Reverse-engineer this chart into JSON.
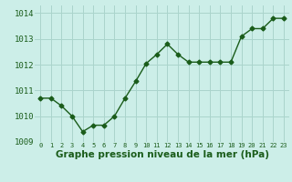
{
  "x": [
    0,
    1,
    2,
    3,
    4,
    5,
    6,
    7,
    8,
    9,
    10,
    11,
    12,
    13,
    14,
    15,
    16,
    17,
    18,
    19,
    20,
    21,
    22,
    23
  ],
  "y": [
    1010.7,
    1010.7,
    1010.4,
    1010.0,
    1009.4,
    1009.65,
    1009.65,
    1010.0,
    1010.7,
    1011.35,
    1012.05,
    1012.4,
    1012.8,
    1012.4,
    1012.1,
    1012.1,
    1012.1,
    1012.1,
    1012.1,
    1013.1,
    1013.4,
    1013.4,
    1013.8,
    1013.8
  ],
  "line_color": "#1a5c1a",
  "marker": "D",
  "marker_size": 2.5,
  "line_width": 1.0,
  "bg_color": "#cceee8",
  "grid_color": "#aad4cc",
  "xlabel": "Graphe pression niveau de la mer (hPa)",
  "xlabel_color": "#1a5c1a",
  "xlabel_fontsize": 7.5,
  "tick_color": "#1a5c1a",
  "ylim": [
    1009.0,
    1014.3
  ],
  "xlim": [
    -0.5,
    23.5
  ],
  "yticks": [
    1009,
    1010,
    1011,
    1012,
    1013,
    1014
  ],
  "xticks": [
    0,
    1,
    2,
    3,
    4,
    5,
    6,
    7,
    8,
    9,
    10,
    11,
    12,
    13,
    14,
    15,
    16,
    17,
    18,
    19,
    20,
    21,
    22,
    23
  ]
}
